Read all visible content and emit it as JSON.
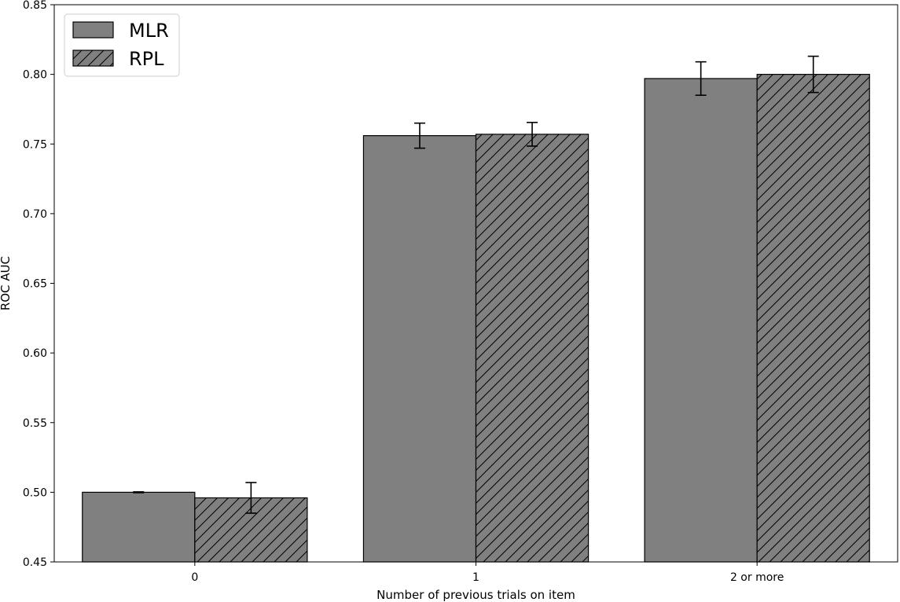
{
  "chart_data": {
    "type": "bar",
    "categories": [
      "0",
      "1",
      "2 or more"
    ],
    "series": [
      {
        "name": "MLR",
        "values": [
          0.5,
          0.756,
          0.797
        ],
        "errors": [
          0.0003,
          0.009,
          0.012
        ],
        "pattern": "solid"
      },
      {
        "name": "RPL",
        "values": [
          0.496,
          0.757,
          0.8
        ],
        "errors": [
          0.011,
          0.0085,
          0.013
        ],
        "pattern": "hatch"
      }
    ],
    "xlabel": "Number of previous trials on item",
    "ylabel": "ROC AUC",
    "ylim": [
      0.45,
      0.85
    ],
    "yticks": [
      "0.45",
      "0.50",
      "0.55",
      "0.60",
      "0.65",
      "0.70",
      "0.75",
      "0.80",
      "0.85"
    ],
    "grid": false,
    "legend_position": "top-left",
    "colors": {
      "bar_fill": "#808080",
      "bar_edge": "#000000",
      "hatch": "#000000"
    }
  }
}
